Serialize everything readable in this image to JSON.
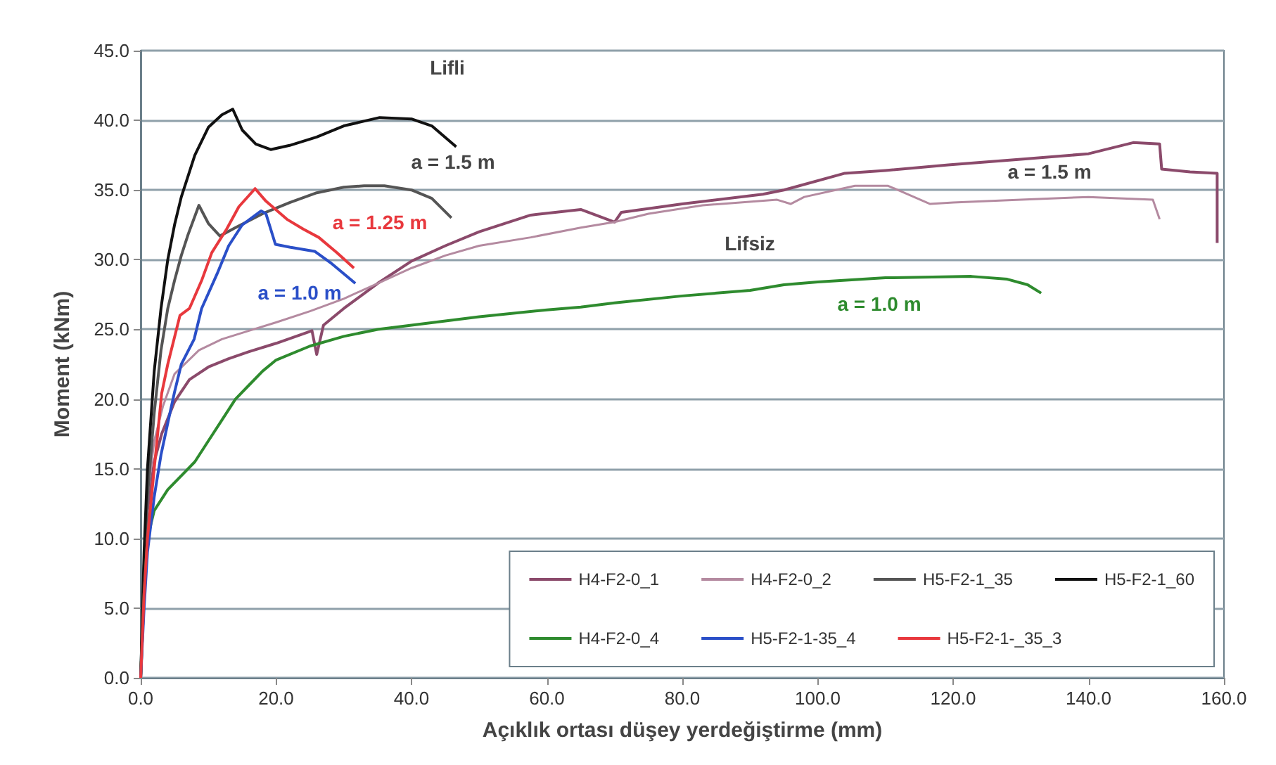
{
  "chart_data": {
    "type": "line",
    "xlabel": "Açıklık ortası düşey yerdeğiştirme (mm)",
    "ylabel": "Moment (kNm)",
    "xlim": [
      0,
      160
    ],
    "ylim": [
      0,
      45
    ],
    "xticks": [
      {
        "value": 0,
        "label": "0.0"
      },
      {
        "value": 20,
        "label": "20.0"
      },
      {
        "value": 40,
        "label": "40.0"
      },
      {
        "value": 60,
        "label": "60.0"
      },
      {
        "value": 80,
        "label": "80.0"
      },
      {
        "value": 100,
        "label": "100.0"
      },
      {
        "value": 120,
        "label": "120.0"
      },
      {
        "value": 140,
        "label": "140.0"
      },
      {
        "value": 160,
        "label": "160.0"
      }
    ],
    "yticks": [
      {
        "value": 0,
        "label": "0.0"
      },
      {
        "value": 5,
        "label": "5.0"
      },
      {
        "value": 10,
        "label": "10.0"
      },
      {
        "value": 15,
        "label": "15.0"
      },
      {
        "value": 20,
        "label": "20.0"
      },
      {
        "value": 25,
        "label": "25.0"
      },
      {
        "value": 30,
        "label": "30.0"
      },
      {
        "value": 35,
        "label": "35.0"
      },
      {
        "value": 40,
        "label": "40.0"
      },
      {
        "value": 45,
        "label": "45.0"
      }
    ],
    "grid": "y",
    "legend": "bottom right",
    "marker": "none",
    "line_style": "solid",
    "series": [
      {
        "name": "H4-F2-0_1",
        "color": "#8b4a6b",
        "x": [
          0,
          1,
          2,
          3.1,
          5,
          7.2,
          10,
          13,
          16,
          20,
          25.3,
          26,
          27,
          30,
          35,
          40,
          45,
          50,
          57.6,
          65,
          70,
          71,
          80,
          91.9,
          95,
          104,
          110,
          119.3,
          130,
          140,
          146.6,
          150.5,
          150.8,
          155,
          159,
          159
        ],
        "values": [
          0,
          12,
          15.5,
          17.5,
          19.8,
          21.4,
          22.3,
          22.9,
          23.4,
          24,
          24.9,
          23.2,
          25.3,
          26.5,
          28.3,
          29.9,
          31,
          32,
          33.2,
          33.6,
          32.7,
          33.4,
          34,
          34.7,
          35,
          36.2,
          36.4,
          36.8,
          37.2,
          37.6,
          38.4,
          38.3,
          36.5,
          36.3,
          36.2,
          31.2
        ]
      },
      {
        "name": "H4-F2-0_2",
        "color": "#b48aa0",
        "x": [
          0,
          1,
          2,
          3.3,
          5,
          8.6,
          12,
          16,
          20,
          25,
          30,
          35,
          40,
          45,
          50,
          57.6,
          65,
          70,
          75,
          83,
          94,
          96,
          98,
          105.5,
          110.4,
          116.6,
          120,
          130,
          140,
          149.5,
          150.5
        ],
        "values": [
          0,
          13,
          17,
          19.5,
          21.8,
          23.5,
          24.3,
          24.9,
          25.5,
          26.3,
          27.2,
          28.3,
          29.4,
          30.3,
          31,
          31.6,
          32.3,
          32.7,
          33.3,
          33.9,
          34.3,
          34,
          34.5,
          35.3,
          35.3,
          34,
          34.1,
          34.3,
          34.5,
          34.3,
          32.9
        ]
      },
      {
        "name": "H5-F2-1_35",
        "color": "#555555",
        "x": [
          0,
          0.5,
          1,
          2,
          3,
          4,
          5,
          6,
          7,
          8.6,
          10,
          11.7,
          14,
          18,
          22,
          26,
          30,
          33,
          36,
          40,
          43,
          45.9
        ],
        "values": [
          0,
          8,
          13,
          19,
          23.5,
          26.5,
          28.5,
          30.3,
          31.8,
          33.9,
          32.6,
          31.7,
          32.3,
          33.3,
          34.1,
          34.8,
          35.2,
          35.3,
          35.3,
          35,
          34.4,
          33
        ]
      },
      {
        "name": "H5-F2-1_60",
        "color": "#111111",
        "x": [
          0,
          0.5,
          1,
          2,
          3,
          4,
          5,
          6,
          8,
          10,
          12,
          13.6,
          15,
          17,
          19.2,
          22,
          26,
          30,
          35.3,
          40,
          43,
          46.6
        ],
        "values": [
          0,
          9,
          15,
          22,
          26.5,
          30,
          32.5,
          34.5,
          37.5,
          39.5,
          40.4,
          40.8,
          39.3,
          38.3,
          37.9,
          38.2,
          38.8,
          39.6,
          40.2,
          40.1,
          39.6,
          38.1
        ]
      },
      {
        "name": "H4-F2-0_4",
        "color": "#2e8b2e",
        "x": [
          0,
          0.5,
          1,
          2,
          4,
          6,
          8,
          10,
          12,
          14,
          16,
          18,
          20,
          25,
          30,
          35,
          40,
          50,
          60,
          65,
          70,
          80,
          90,
          95,
          100,
          110,
          122.7,
          128,
          131,
          133
        ],
        "values": [
          0,
          6,
          10,
          12,
          13.5,
          14.5,
          15.5,
          17,
          18.5,
          20,
          21,
          22,
          22.8,
          23.8,
          24.5,
          25,
          25.3,
          25.9,
          26.4,
          26.6,
          26.9,
          27.4,
          27.8,
          28.2,
          28.4,
          28.7,
          28.8,
          28.6,
          28.2,
          27.6
        ]
      },
      {
        "name": "H5-F2-1-35_4",
        "color": "#2a4fc8",
        "x": [
          0,
          0.5,
          1,
          2,
          3,
          4.1,
          5,
          6,
          7.9,
          9,
          11.3,
          13,
          15,
          17.8,
          18.5,
          19.9,
          22,
          25.7,
          28,
          31.7
        ],
        "values": [
          0,
          5,
          9,
          13,
          16,
          18.5,
          20.5,
          22.5,
          24.3,
          26.5,
          29,
          31,
          32.5,
          33.5,
          33.3,
          31.1,
          30.9,
          30.6,
          29.8,
          28.3
        ]
      },
      {
        "name": "H5-F2-1-_35_3",
        "color": "#e8383d",
        "x": [
          0,
          0.5,
          1,
          2,
          3.1,
          4,
          5.8,
          7.2,
          9,
          10.5,
          12.7,
          14.5,
          16.9,
          18.5,
          21.6,
          24,
          26.3,
          29,
          31.5
        ],
        "values": [
          0,
          6,
          10,
          15,
          20.4,
          22.5,
          26,
          26.5,
          28.5,
          30.5,
          32.2,
          33.8,
          35.1,
          34.2,
          32.9,
          32.2,
          31.6,
          30.5,
          29.4
        ]
      }
    ],
    "annotations": [
      "Lifli",
      "a = 1.5 m",
      "a = 1.25 m",
      "a = 1.0 m",
      "a = 1.5 m",
      "Lifsiz",
      "a = 1.0 m"
    ]
  }
}
